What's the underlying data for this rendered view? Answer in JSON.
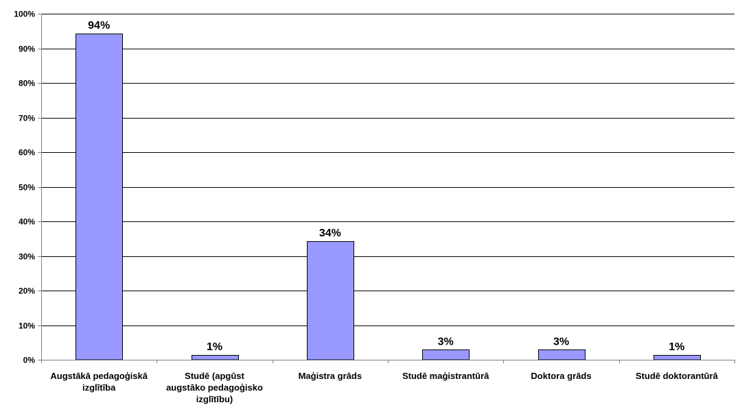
{
  "chart_data": {
    "type": "bar",
    "categories": [
      "Augstākā pedagoģiskā izglītība",
      "Studē (apgūst augstāko pedagoģisko izglītību)",
      "Maģistra grāds",
      "Studē maģistrantūrā",
      "Doktora grāds",
      "Studē doktorantūrā"
    ],
    "category_label_lines": [
      [
        "Augstākā pedagoģiskā",
        "izglītība"
      ],
      [
        "Studē (apgūst",
        "augstāko pedagoģisko",
        "izglītību)"
      ],
      [
        "Maģistra grāds"
      ],
      [
        "Studē maģistrantūrā"
      ],
      [
        "Doktora grāds"
      ],
      [
        "Studē doktorantūrā"
      ]
    ],
    "values": [
      94.3,
      1.4,
      34.3,
      2.9,
      2.9,
      1.4
    ],
    "data_labels": [
      "94%",
      "1%",
      "34%",
      "3%",
      "3%",
      "1%"
    ],
    "y_ticks": [
      0,
      10,
      20,
      30,
      40,
      50,
      60,
      70,
      80,
      90,
      100
    ],
    "y_tick_labels": [
      "0%",
      "10%",
      "20%",
      "30%",
      "40%",
      "50%",
      "60%",
      "70%",
      "80%",
      "90%",
      "100%"
    ],
    "ylim": [
      0,
      100
    ],
    "title": "",
    "xlabel": "",
    "ylabel": "",
    "grid": true,
    "legend": false,
    "colors": {
      "bar_fill": "#9999ff",
      "bar_stroke": "#000000",
      "grid": "#000000",
      "axis": "#808080",
      "text": "#000000"
    }
  }
}
